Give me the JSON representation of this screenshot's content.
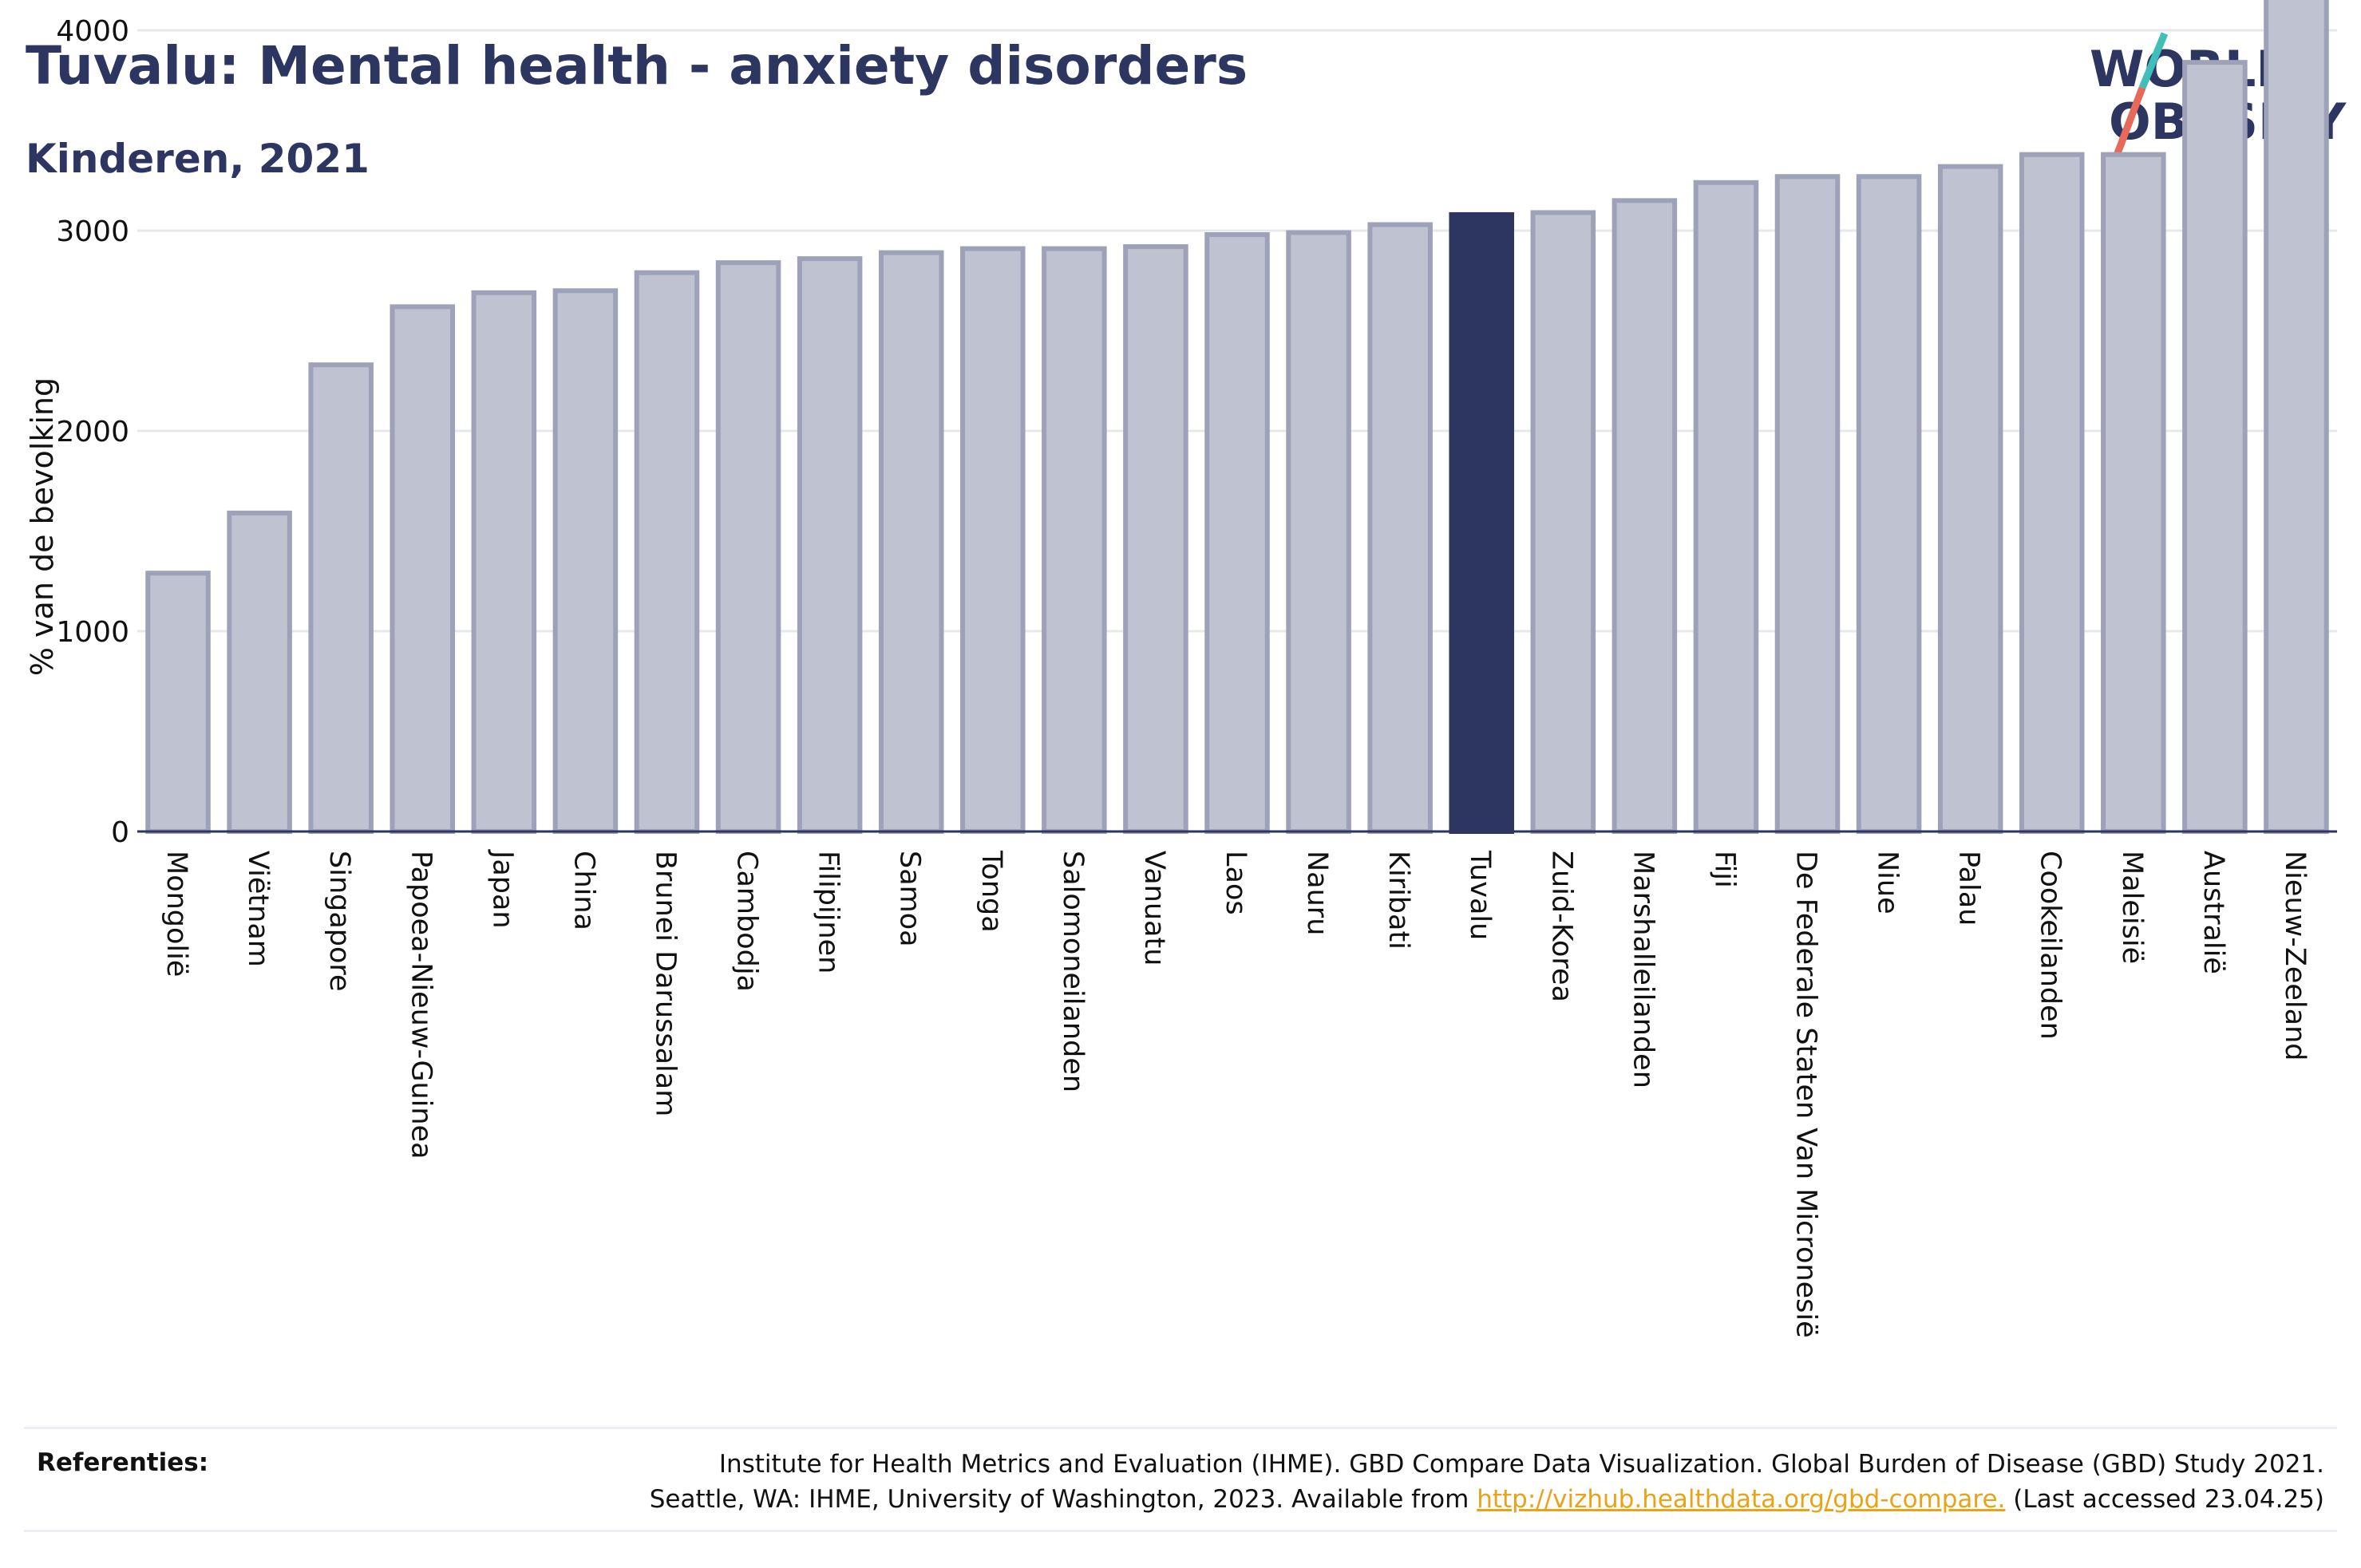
{
  "header": {
    "title": "Tuvalu: Mental health - anxiety disorders",
    "subtitle": "Kinderen, 2021"
  },
  "logo": {
    "line1": "WORLD",
    "line2": "OBESITY",
    "slash_colors": [
      "#3fbfb8",
      "#e8685a"
    ]
  },
  "colors": {
    "bar": "#bfc2d0",
    "bar_stroke": "#9da2b8",
    "highlight": "#2d3561",
    "text": "#2d3561"
  },
  "chart_data": {
    "type": "bar",
    "ylabel": "% van de bevolking",
    "ylim": [
      0,
      4400
    ],
    "yticks": [
      0,
      1000,
      2000,
      3000,
      4000
    ],
    "grid": true,
    "highlight": "Tuvalu",
    "categories": [
      "Mongolië",
      "Viëtnam",
      "Singapore",
      "Papoea-Nieuw-Guinea",
      "Japan",
      "China",
      "Brunei Darussalam",
      "Cambodja",
      "Filipijnen",
      "Samoa",
      "Tonga",
      "Salomoneilanden",
      "Vanuatu",
      "Laos",
      "Nauru",
      "Kiribati",
      "Tuvalu",
      "Zuid-Korea",
      "Marshalleilanden",
      "Fiji",
      "De Federale Staten Van Micronesië",
      "Niue",
      "Palau",
      "Cookeilanden",
      "Maleisië",
      "Australië",
      "Nieuw-Zeeland"
    ],
    "values": [
      1290,
      1590,
      2330,
      2620,
      2690,
      2700,
      2790,
      2840,
      2860,
      2890,
      2910,
      2910,
      2920,
      2980,
      2990,
      3030,
      3080,
      3090,
      3150,
      3240,
      3270,
      3270,
      3320,
      3380,
      3380,
      3840,
      4400
    ]
  },
  "references": {
    "label": "Referenties:",
    "line1": "Institute for Health Metrics and Evaluation (IHME). GBD Compare Data Visualization. Global Burden of Disease (GBD) Study 2021.",
    "line2_prefix": "Seattle, WA: IHME, University of Washington, 2023. Available from ",
    "link": "http://vizhub.healthdata.org/gbd-compare.",
    "line2_suffix": " (Last accessed 23.04.25)"
  }
}
